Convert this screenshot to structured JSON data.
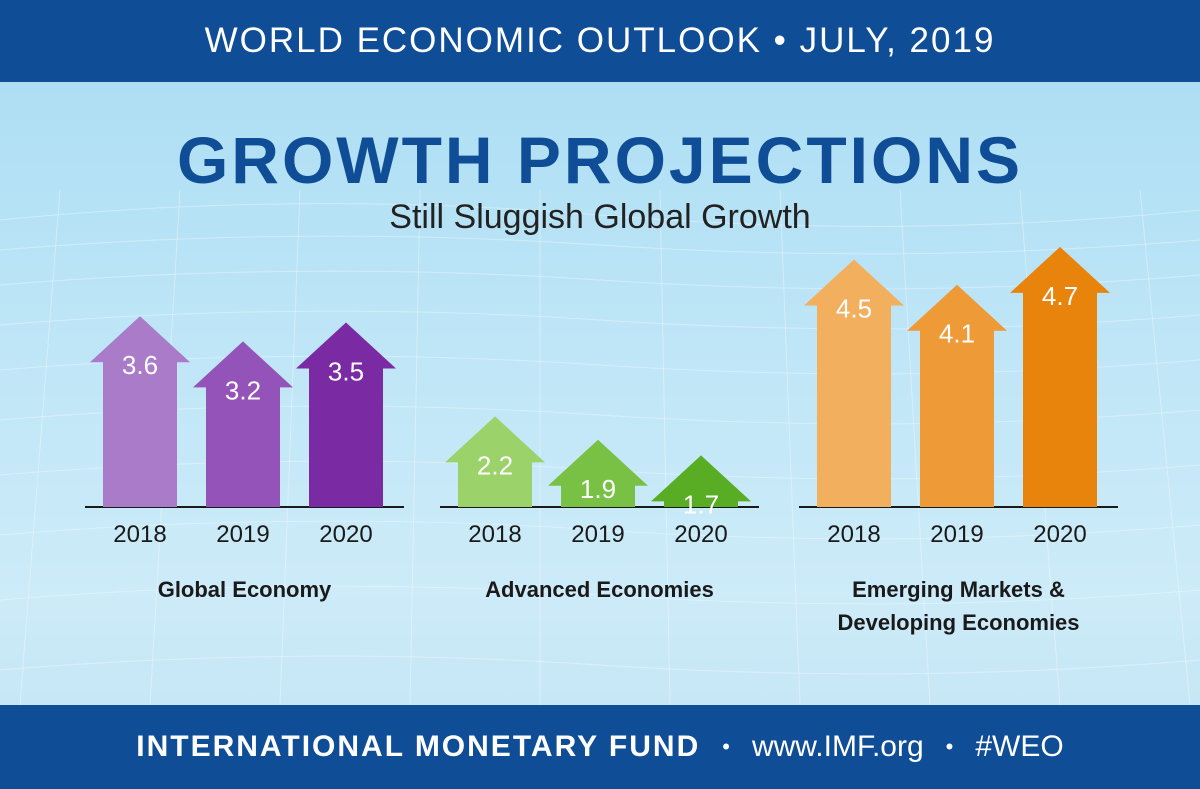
{
  "header": {
    "text": "WORLD ECONOMIC OUTLOOK • JULY, 2019"
  },
  "title": "GROWTH PROJECTIONS",
  "subtitle": "Still Sluggish Global Growth",
  "footer": {
    "org": "INTERNATIONAL MONETARY FUND",
    "sep": "•",
    "url": "www.IMF.org",
    "tag": "#WEO"
  },
  "colors": {
    "brand_blue": "#0f4d97",
    "global": [
      "#a97bc9",
      "#9353b8",
      "#7a2ba3"
    ],
    "advanced": [
      "#9bd36a",
      "#79c145",
      "#58ad25"
    ],
    "emerging": [
      "#f2b05f",
      "#ee9a36",
      "#e8840c"
    ]
  },
  "chart_data": {
    "type": "bar",
    "title": "GROWTH PROJECTIONS",
    "subtitle": "Still Sluggish Global Growth",
    "categories": [
      "2018",
      "2019",
      "2020"
    ],
    "series": [
      {
        "name": "Global Economy",
        "label_lines": [
          "Global Economy"
        ],
        "values": [
          3.6,
          3.2,
          3.5
        ]
      },
      {
        "name": "Advanced Economies",
        "label_lines": [
          "Advanced Economies"
        ],
        "values": [
          2.2,
          1.9,
          1.7
        ]
      },
      {
        "name": "Emerging Markets & Developing Economies",
        "label_lines": [
          "Emerging Markets &",
          "Developing Economies"
        ],
        "values": [
          4.5,
          4.1,
          4.7
        ]
      }
    ],
    "value_display": [
      "3.6",
      "3.2",
      "3.5",
      "2.2",
      "1.9",
      "1.7",
      "4.5",
      "4.1",
      "4.7"
    ],
    "ylabel": "",
    "xlabel": ""
  }
}
